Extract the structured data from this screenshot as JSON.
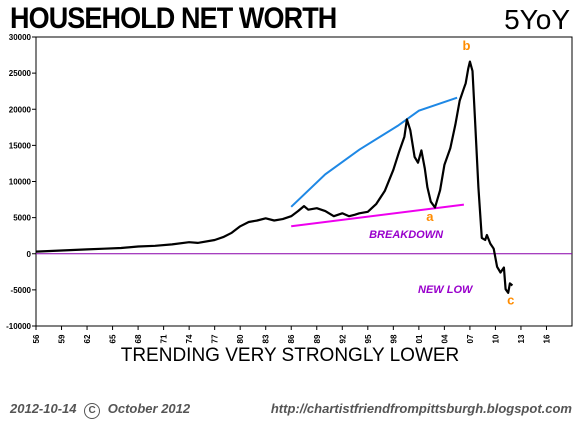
{
  "header": {
    "title": "HOUSEHOLD NET WORTH",
    "badge": "5YoY"
  },
  "footer": {
    "date": "2012-10-14",
    "copyright_symbol": "C",
    "period": "October 2012",
    "url": "http://chartistfriendfrompittsburgh.blogspot.com"
  },
  "colors": {
    "series": "#000000",
    "upper_trendline": "#1e88e5",
    "lower_trendline": "#ee00ee",
    "zero_line": "#8800aa",
    "wave_label": "#ff8c00",
    "note": "#9900cc"
  },
  "chart_data": {
    "type": "line",
    "title": "HOUSEHOLD NET WORTH",
    "subtitle": "TRENDING VERY STRONGLY LOWER",
    "xlabel": "",
    "ylabel": "",
    "xlim": [
      1956,
      2019
    ],
    "ylim": [
      -10000,
      30000
    ],
    "x_ticks": [
      1956,
      1959,
      1962,
      1965,
      1968,
      1971,
      1974,
      1977,
      1980,
      1983,
      1986,
      1989,
      1992,
      1995,
      1998,
      2001,
      2004,
      2007,
      2010,
      2013,
      2016
    ],
    "x_tick_labels": [
      "56",
      "59",
      "62",
      "65",
      "68",
      "71",
      "74",
      "77",
      "80",
      "83",
      "86",
      "89",
      "92",
      "95",
      "98",
      "01",
      "04",
      "07",
      "10",
      "13",
      "16"
    ],
    "y_ticks": [
      -10000,
      -5000,
      0,
      5000,
      10000,
      15000,
      20000,
      25000,
      30000
    ],
    "y_tick_labels": [
      "-10000",
      "-5000",
      "0",
      "5000",
      "10000",
      "15000",
      "20000",
      "25000",
      "30000"
    ],
    "grid": false,
    "series": [
      {
        "x": [
          1956,
          1958,
          1960,
          1962,
          1964,
          1966,
          1968,
          1970,
          1972,
          1974,
          1975,
          1977,
          1978,
          1979,
          1980,
          1981,
          1982,
          1983,
          1984,
          1985,
          1986,
          1986.8,
          1987.5,
          1988,
          1989,
          1990,
          1991,
          1992,
          1992.8,
          1993.5,
          1994,
          1995,
          1996,
          1997,
          1998,
          1998.7,
          1999.3,
          1999.6,
          2000,
          2000.5,
          2000.9,
          2001.3,
          2001.7,
          2002,
          2002.4,
          2002.9,
          2003.5,
          2004,
          2004.7,
          2005.3,
          2005.8,
          2006.3,
          2006.5,
          2006.8,
          2007,
          2007.3,
          2007.6,
          2008,
          2008.4,
          2008.8,
          2009,
          2009.4,
          2009.8,
          2010.2,
          2010.6,
          2011,
          2011.2,
          2011.5,
          2011.7,
          2012
        ],
        "y": [
          300,
          400,
          500,
          600,
          700,
          800,
          1000,
          1100,
          1300,
          1600,
          1500,
          1900,
          2300,
          2900,
          3800,
          4400,
          4600,
          4900,
          4600,
          4800,
          5200,
          5900,
          6600,
          6100,
          6300,
          5900,
          5200,
          5600,
          5200,
          5400,
          5600,
          5800,
          6900,
          8700,
          11600,
          14200,
          16200,
          18600,
          17100,
          13400,
          12600,
          14300,
          11800,
          9200,
          7200,
          6400,
          8800,
          12300,
          14600,
          17900,
          21200,
          22900,
          23600,
          25600,
          26600,
          25300,
          18600,
          9200,
          2200,
          1900,
          2600,
          1400,
          700,
          -1800,
          -2600,
          -1900,
          -4900,
          -5400,
          -4100,
          -4400
        ]
      }
    ],
    "trendlines": [
      {
        "name": "upper",
        "x": [
          1986,
          1990,
          1994,
          1998.5,
          2001,
          2005.5
        ],
        "y": [
          6500,
          11000,
          14400,
          17700,
          19800,
          21600
        ]
      },
      {
        "name": "lower",
        "x": [
          1986,
          2006.3
        ],
        "y": [
          3800,
          6800
        ]
      }
    ],
    "reference_lines": [
      {
        "y": 0
      }
    ],
    "annotations": [
      {
        "text": "b",
        "x": 2006.6,
        "y": 28200,
        "kind": "wave"
      },
      {
        "text": "a",
        "x": 2002.3,
        "y": 4500,
        "kind": "wave"
      },
      {
        "text": "c",
        "x": 2011.8,
        "y": -7000,
        "kind": "wave"
      },
      {
        "text": "BREAKDOWN",
        "x": 1999.5,
        "y": 2200,
        "kind": "note"
      },
      {
        "text": "NEW LOW",
        "x": 2004.1,
        "y": -5400,
        "kind": "note"
      }
    ]
  }
}
